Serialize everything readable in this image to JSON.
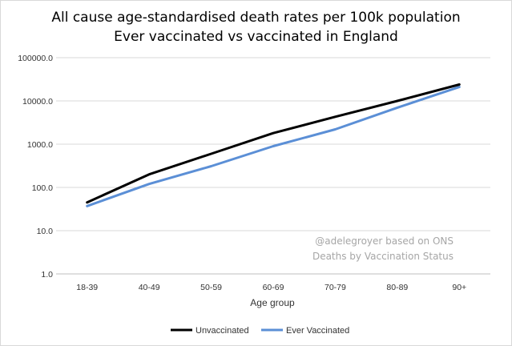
{
  "chart_data": {
    "type": "line",
    "title_line1": "All cause age-standardised death rates per 100k population",
    "title_line2": "Ever vaccinated vs vaccinated in England",
    "xlabel": "Age group",
    "ylabel": "",
    "yscale": "log",
    "ylim": [
      1,
      100000
    ],
    "yticks": [
      "100000.0",
      "10000.0",
      "1000.0",
      "100.0",
      "10.0",
      "1.0"
    ],
    "ytick_values": [
      100000,
      10000,
      1000,
      100,
      10,
      1
    ],
    "grid": true,
    "legend_position": "bottom",
    "categories": [
      "18-39",
      "40-49",
      "50-59",
      "60-69",
      "70-79",
      "80-89",
      "90+"
    ],
    "series": [
      {
        "name": "Unvaccinated",
        "color": "#000000",
        "values": [
          45,
          200,
          600,
          1800,
          4300,
          10000,
          24000
        ]
      },
      {
        "name": "Ever Vaccinated",
        "color": "#5b8fd6",
        "values": [
          37,
          120,
          310,
          900,
          2200,
          7000,
          21000
        ]
      }
    ],
    "annotation_line1": "@adelegroyer based on ONS",
    "annotation_line2": "Deaths by Vaccination Status"
  }
}
